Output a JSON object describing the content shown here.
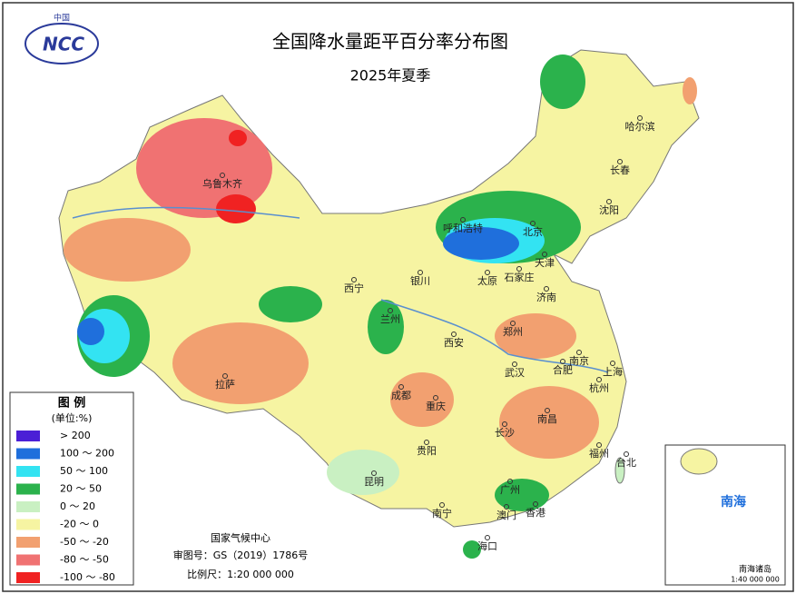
{
  "header": {
    "logo_top": "中国",
    "logo": "NCC",
    "title": "全国降水量距平百分率分布图",
    "subtitle": "2025年夏季"
  },
  "legend": {
    "title": "图 例",
    "unit": "(单位:%)",
    "items": [
      {
        "label": "> 200",
        "color": "#4b1fd6"
      },
      {
        "label": "100 ～ 200",
        "color": "#1f6fdc"
      },
      {
        "label": "50 ～ 100",
        "color": "#33e3f2"
      },
      {
        "label": "20 ～ 50",
        "color": "#2bb24c"
      },
      {
        "label": "0 ～ 20",
        "color": "#c9f0c2"
      },
      {
        "label": "-20 ～ 0",
        "color": "#f6f4a2"
      },
      {
        "label": "-50 ～ -20",
        "color": "#f2a070"
      },
      {
        "label": "-80 ～ -50",
        "color": "#f07272"
      },
      {
        "label": "-100 ～ -80",
        "color": "#f02222"
      }
    ]
  },
  "cities": [
    "乌鲁木齐",
    "哈尔滨",
    "长春",
    "沈阳",
    "呼和浩特",
    "北京",
    "天津",
    "石家庄",
    "太原",
    "银川",
    "西宁",
    "兰州",
    "济南",
    "郑州",
    "西安",
    "南京",
    "合肥",
    "上海",
    "武汉",
    "杭州",
    "拉萨",
    "成都",
    "重庆",
    "长沙",
    "南昌",
    "福州",
    "台北",
    "贵阳",
    "昆明",
    "南宁",
    "广州",
    "澳门",
    "香港",
    "海口"
  ],
  "footer": {
    "agency": "国家气候中心",
    "approval": "审图号：GS（2019）1786号",
    "scale": "比例尺：1:20 000 000"
  },
  "inset": {
    "sea": "南海",
    "islands": "南海诸岛",
    "scale": "1:40 000 000"
  }
}
